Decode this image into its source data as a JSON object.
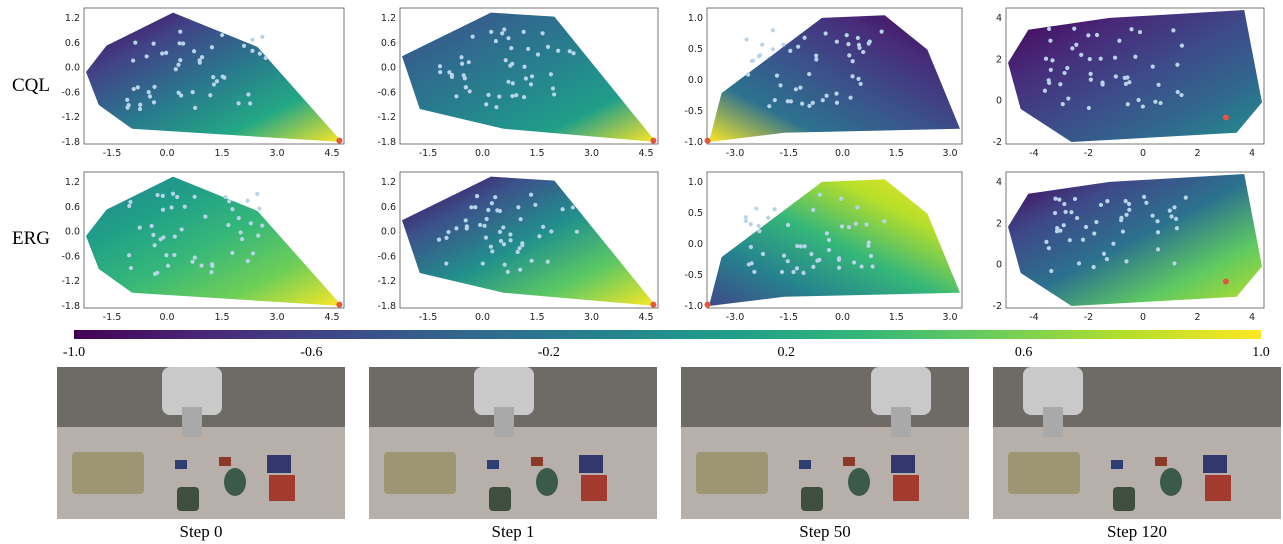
{
  "rows": [
    {
      "label": "CQL"
    },
    {
      "label": "ERG"
    }
  ],
  "panels": [
    {
      "row": 0,
      "col": 0,
      "yticks": [
        "1.2",
        "0.6",
        "0.0",
        "-0.6",
        "-1.2",
        "-1.8"
      ],
      "xticks": [
        "-1.5",
        "0.0",
        "1.5",
        "3.0",
        "4.5"
      ]
    },
    {
      "row": 0,
      "col": 1,
      "yticks": [
        "1.2",
        "0.6",
        "0.0",
        "-0.6",
        "-1.2",
        "-1.8"
      ],
      "xticks": [
        "-1.5",
        "0.0",
        "1.5",
        "3.0",
        "4.5"
      ]
    },
    {
      "row": 0,
      "col": 2,
      "yticks": [
        "1.0",
        "0.5",
        "0.0",
        "-0.5",
        "-1.0"
      ],
      "xticks": [
        "-3.0",
        "-1.5",
        "0.0",
        "1.5",
        "3.0"
      ]
    },
    {
      "row": 0,
      "col": 3,
      "yticks": [
        "4",
        "2",
        "0",
        "-2"
      ],
      "xticks": [
        "-4",
        "-2",
        "0",
        "2",
        "4"
      ]
    },
    {
      "row": 1,
      "col": 0,
      "yticks": [
        "1.2",
        "0.6",
        "0.0",
        "-0.6",
        "-1.2",
        "-1.8"
      ],
      "xticks": [
        "-1.5",
        "0.0",
        "1.5",
        "3.0",
        "4.5"
      ]
    },
    {
      "row": 1,
      "col": 1,
      "yticks": [
        "1.2",
        "0.6",
        "0.0",
        "-0.6",
        "-1.2",
        "-1.8"
      ],
      "xticks": [
        "-1.5",
        "0.0",
        "1.5",
        "3.0",
        "4.5"
      ]
    },
    {
      "row": 1,
      "col": 2,
      "yticks": [
        "1.0",
        "0.5",
        "0.0",
        "-0.5",
        "-1.0"
      ],
      "xticks": [
        "-3.0",
        "-1.5",
        "0.0",
        "1.5",
        "3.0"
      ]
    },
    {
      "row": 1,
      "col": 3,
      "yticks": [
        "4",
        "2",
        "0",
        "-2"
      ],
      "xticks": [
        "-4",
        "-2",
        "0",
        "2",
        "4"
      ]
    }
  ],
  "colorbar": {
    "colormap": "viridis",
    "ticks": [
      "-1.0",
      "-0.6",
      "-0.2",
      "0.2",
      "0.6",
      "1.0"
    ]
  },
  "steps": [
    {
      "caption": "Step 0"
    },
    {
      "caption": "Step 1"
    },
    {
      "caption": "Step 50"
    },
    {
      "caption": "Step 120"
    }
  ],
  "colors": {
    "dark": "#440154",
    "mid": "#21918c",
    "light": "#fde725",
    "point": "#b8d4ea",
    "goal": "#e8553d"
  }
}
